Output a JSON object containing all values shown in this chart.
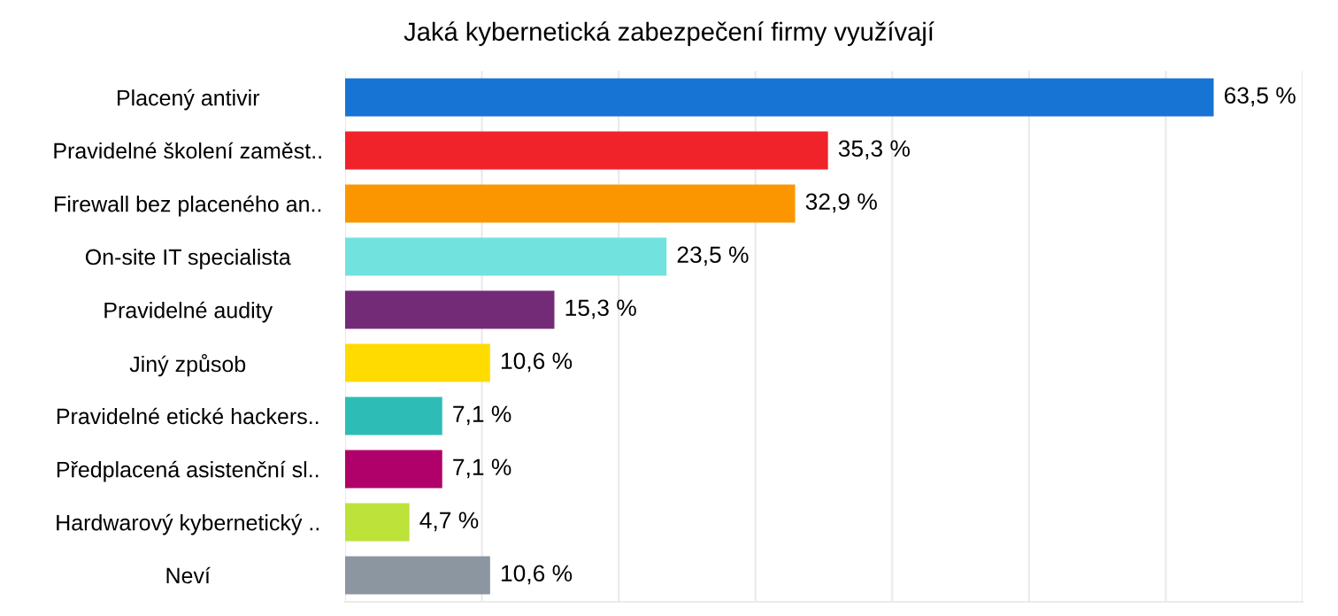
{
  "chart_data": {
    "type": "bar",
    "orientation": "horizontal",
    "title": "Jaká kybernetická zabezpečení firmy využívají",
    "categories": [
      "Placený antivir",
      "Pravidelné školení zaměst..",
      "Firewall bez placeného an..",
      "On-site IT specialista",
      "Pravidelné audity",
      "Jiný způsob",
      "Pravidelné etické hackers..",
      "Předplacená asistenční sl..",
      "Hardwarový kybernetický ..",
      "Neví"
    ],
    "values": [
      63.5,
      35.3,
      32.9,
      23.5,
      15.3,
      10.6,
      7.1,
      7.1,
      4.7,
      10.6
    ],
    "value_labels": [
      "63,5 %",
      "35,3 %",
      "32,9 %",
      "23,5 %",
      "15,3 %",
      "10,6 %",
      "7,1 %",
      "7,1 %",
      "4,7 %",
      "10,6 %"
    ],
    "colors": [
      "#1874d4",
      "#f0232b",
      "#fb9600",
      "#72e2df",
      "#732b78",
      "#ffdb00",
      "#2dbdb6",
      "#b00069",
      "#bde239",
      "#8c96a0"
    ],
    "xlim": [
      0,
      70
    ],
    "xticks": [
      {
        "value": 0,
        "label": null
      },
      {
        "value": 10,
        "label": null
      },
      {
        "value": 20,
        "label": null
      },
      {
        "value": 30,
        "label": null
      },
      {
        "value": 40,
        "label": null
      },
      {
        "value": 50,
        "label": null
      },
      {
        "value": 60,
        "label": null
      },
      {
        "value": 70,
        "label": null
      }
    ],
    "grid": "x",
    "tick_labels": "y"
  }
}
